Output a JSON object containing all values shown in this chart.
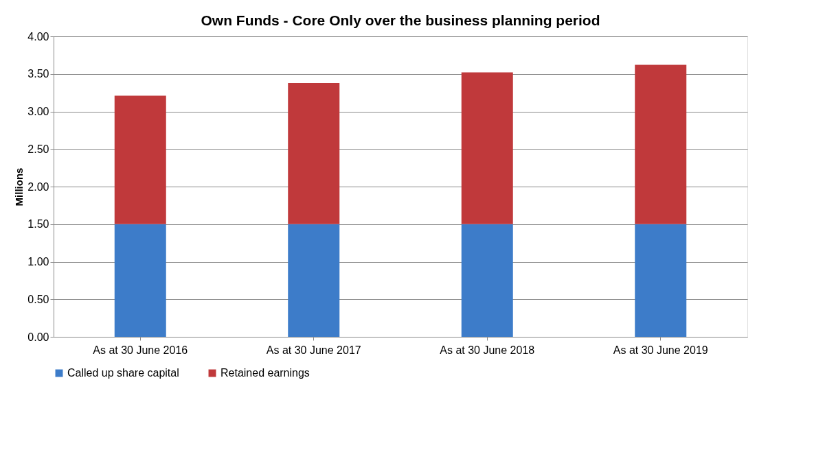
{
  "chart_data": {
    "type": "bar",
    "title": "Own Funds - Core Only over the business planning period",
    "ylabel": "Millions",
    "categories": [
      "As at 30 June 2016",
      "As at 30 June 2017",
      "As at 30 June 2018",
      "As at 30 June 2019"
    ],
    "stacked": true,
    "series": [
      {
        "name": "Called up share capital",
        "color": "#3d7cc9",
        "values": [
          1.5,
          1.5,
          1.5,
          1.5
        ]
      },
      {
        "name": "Retained earnings",
        "color": "#c0393b",
        "values": [
          1.71,
          1.88,
          2.02,
          2.12
        ]
      }
    ],
    "ylim": [
      0,
      4
    ],
    "yticks": [
      {
        "value": 0,
        "label": "0.00"
      },
      {
        "value": 0.5,
        "label": "0.50"
      },
      {
        "value": 1,
        "label": "1.00"
      },
      {
        "value": 1.5,
        "label": "1.50"
      },
      {
        "value": 2,
        "label": "2.00"
      },
      {
        "value": 2.5,
        "label": "2.50"
      },
      {
        "value": 3,
        "label": "3.00"
      },
      {
        "value": 3.5,
        "label": "3.50"
      },
      {
        "value": 4,
        "label": "4.00"
      }
    ],
    "grid": "y",
    "legend": "bottom"
  }
}
